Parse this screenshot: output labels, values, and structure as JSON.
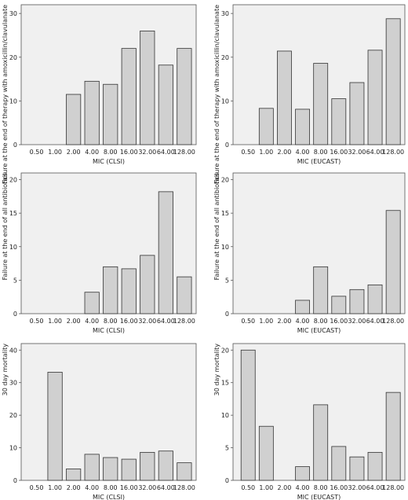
{
  "chart_data": [
    {
      "type": "bar",
      "categories": [
        "0.50",
        "1.00",
        "2.00",
        "4.00",
        "8.00",
        "16.00",
        "32.00",
        "64.00",
        "128.00"
      ],
      "values": [
        0,
        0,
        11.5,
        14.5,
        13.8,
        22.0,
        26.0,
        18.2,
        22.0
      ],
      "xlabel": "MIC (CLSI)",
      "ylabel": "Failure at the end of therapy with amoxicillin/clavulanate",
      "ylim": [
        0,
        32
      ],
      "yticks": [
        0,
        10,
        20,
        30
      ]
    },
    {
      "type": "bar",
      "categories": [
        "0.50",
        "1.00",
        "2.00",
        "4.00",
        "8.00",
        "16.00",
        "32.00",
        "64.00",
        "128.00"
      ],
      "values": [
        0,
        8.3,
        21.4,
        8.1,
        18.6,
        10.5,
        14.2,
        21.6,
        28.8
      ],
      "xlabel": "MIC (EUCAST)",
      "ylabel": "Failure at the end of therapy with amoxicillin/clavulanate",
      "ylim": [
        0,
        32
      ],
      "yticks": [
        0,
        10,
        20,
        30
      ]
    },
    {
      "type": "bar",
      "categories": [
        "0.50",
        "1.00",
        "2.00",
        "4.00",
        "8.00",
        "16.00",
        "32.00",
        "64.00",
        "128.00"
      ],
      "values": [
        0,
        0,
        0,
        3.2,
        7.0,
        6.7,
        8.7,
        18.2,
        5.5
      ],
      "xlabel": "MIC (CLSI)",
      "ylabel": "Failure at the end of all antibiotics",
      "ylim": [
        0,
        21
      ],
      "yticks": [
        0,
        5,
        10,
        15,
        20
      ]
    },
    {
      "type": "bar",
      "categories": [
        "0.50",
        "1.00",
        "2.00",
        "4.00",
        "8.00",
        "16.00",
        "32.00",
        "64.00",
        "128.00"
      ],
      "values": [
        0,
        0,
        0,
        2.0,
        7.0,
        2.6,
        3.6,
        4.3,
        15.4
      ],
      "xlabel": "MIC (EUCAST)",
      "ylabel": "Failure at the end of all antibiotics",
      "ylim": [
        0,
        21
      ],
      "yticks": [
        0,
        5,
        10,
        15,
        20
      ]
    },
    {
      "type": "bar",
      "categories": [
        "0.50",
        "1.00",
        "2.00",
        "4.00",
        "8.00",
        "16.00",
        "32.00",
        "64.00",
        "128.00"
      ],
      "values": [
        0,
        33.2,
        3.5,
        8.0,
        7.0,
        6.5,
        8.6,
        9.0,
        5.4
      ],
      "xlabel": "MIC (CLSI)",
      "ylabel": "30 day mortality",
      "ylim": [
        0,
        42
      ],
      "yticks": [
        0,
        10,
        20,
        30,
        40
      ]
    },
    {
      "type": "bar",
      "categories": [
        "0.50",
        "1.00",
        "2.00",
        "4.00",
        "8.00",
        "16.00",
        "32.00",
        "64.00",
        "128.00"
      ],
      "values": [
        20.0,
        8.3,
        0,
        2.1,
        11.6,
        5.2,
        3.6,
        4.3,
        13.5
      ],
      "xlabel": "MIC (EUCAST)",
      "ylabel": "30 day mortality",
      "ylim": [
        0,
        21
      ],
      "yticks": [
        0,
        5,
        10,
        15,
        20
      ]
    }
  ]
}
